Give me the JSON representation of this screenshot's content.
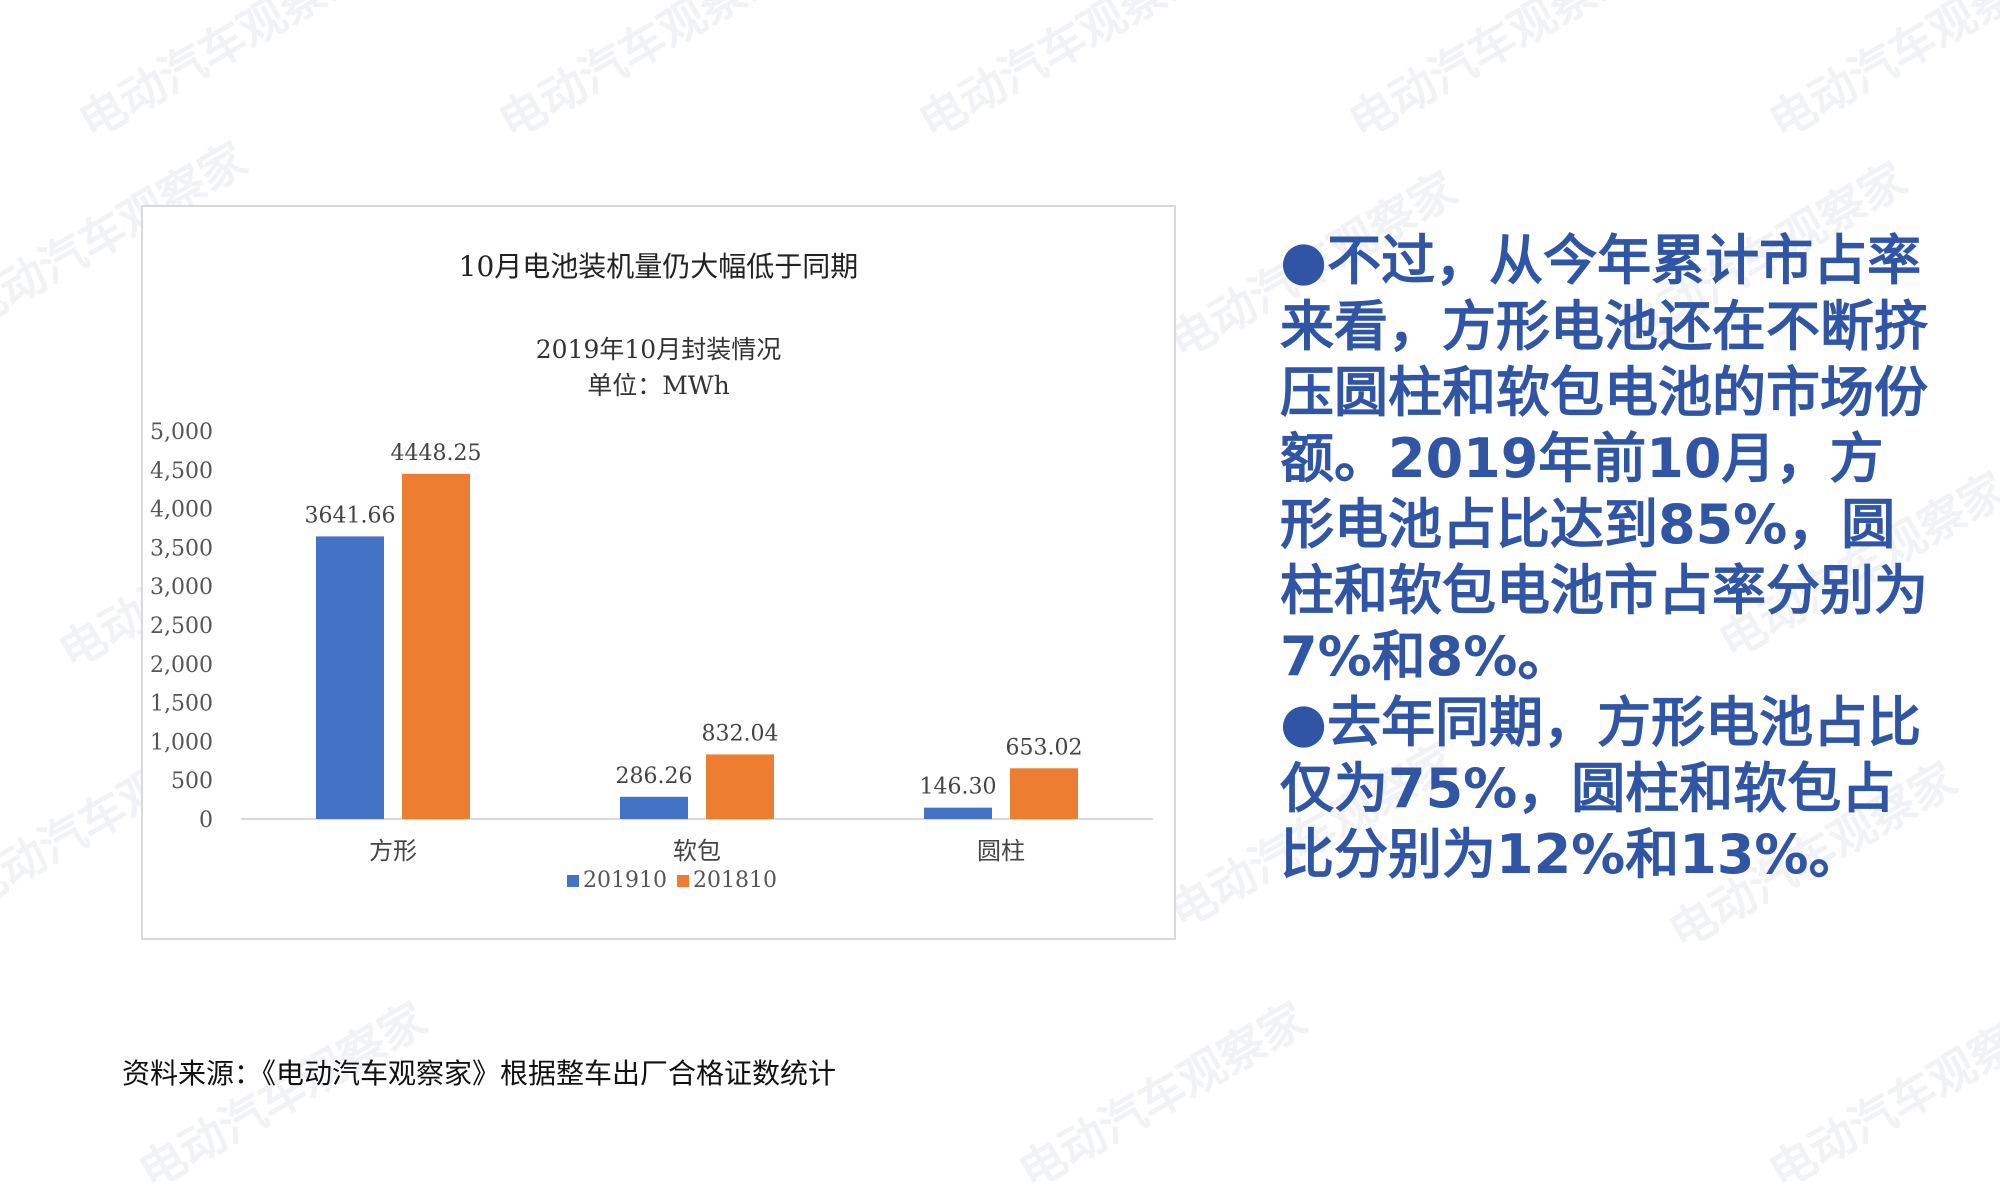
{
  "watermark": "电动汽车观察家",
  "chart_title": "10月电池装机量仍大幅低于同期",
  "chart_data": {
    "type": "bar",
    "title": "2019年10月封装情况",
    "subtitle": "单位：MWh",
    "categories": [
      "方形",
      "软包",
      "圆柱"
    ],
    "series": [
      {
        "name": "201910",
        "values": [
          3641.66,
          286.26,
          146.3
        ],
        "labels": [
          "3641.66",
          "286.26",
          "146.30"
        ],
        "color": "#4472c4"
      },
      {
        "name": "201810",
        "values": [
          4448.25,
          832.04,
          653.02
        ],
        "labels": [
          "4448.25",
          "832.04",
          "653.02"
        ],
        "color": "#ed7d31"
      }
    ],
    "ylim": [
      0,
      5000
    ],
    "yticks": [
      0,
      500,
      1000,
      1500,
      2000,
      2500,
      3000,
      3500,
      4000,
      4500,
      5000
    ],
    "ytick_labels": [
      "0",
      "500",
      "1,000",
      "1,500",
      "2,000",
      "2,500",
      "3,000",
      "3,500",
      "4,000",
      "4,500",
      "5,000"
    ],
    "grid": false,
    "legend_position": "bottom"
  },
  "right_text": {
    "para1": "●不过，从今年累计市占率来看，方形电池还在不断挤压圆柱和软包电池的市场份额。2019年前10月，方形电池占比达到85%，圆柱和软包电池市占率分别为7%和8%。",
    "para2": "●去年同期，方形电池占比仅为75%，圆柱和软包占比分别为12%和13%。"
  },
  "source": "资料来源：《电动汽车观察家》根据整车出厂合格证数统计"
}
